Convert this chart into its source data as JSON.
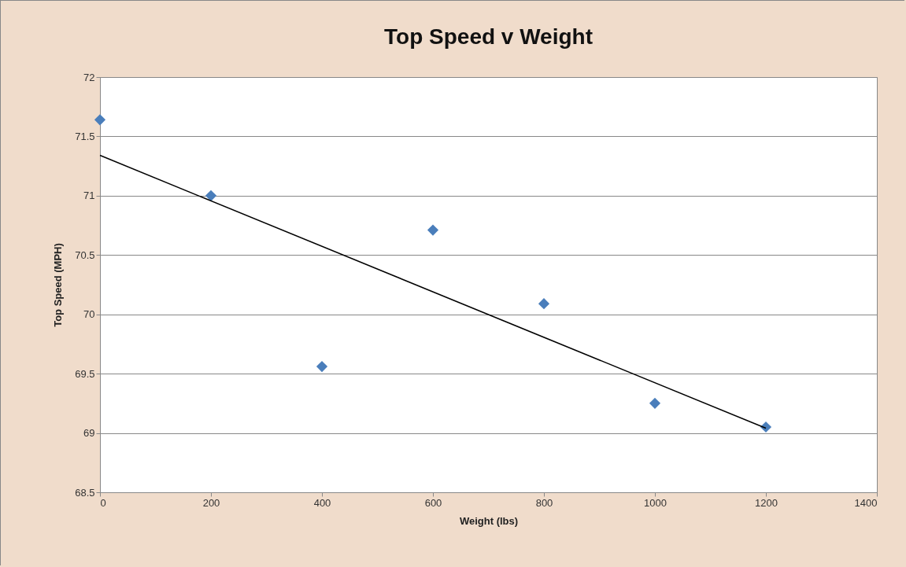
{
  "chart_data": {
    "type": "scatter",
    "title": "Top Speed v Weight",
    "xlabel": "Weight (lbs)",
    "ylabel": "Top Speed (MPH)",
    "xlim": [
      0,
      1400
    ],
    "xticks": [
      0,
      200,
      400,
      600,
      800,
      1000,
      1200,
      1400
    ],
    "ylim": [
      68.5,
      72
    ],
    "yticks": [
      68.5,
      69,
      69.5,
      70,
      70.5,
      71,
      71.5,
      72
    ],
    "grid": "y",
    "marker": "diamond",
    "series": [
      {
        "color": "#4a7ebb",
        "x": [
          0,
          200,
          400,
          600,
          800,
          1000,
          1200
        ],
        "values": [
          71.64,
          71.0,
          69.56,
          70.71,
          70.09,
          69.25,
          69.05
        ]
      },
      {
        "type": "line",
        "color": "#000000",
        "marker": "none",
        "line_style": "solid",
        "x": [
          0,
          1200
        ],
        "values": [
          71.34,
          69.04
        ]
      }
    ]
  }
}
